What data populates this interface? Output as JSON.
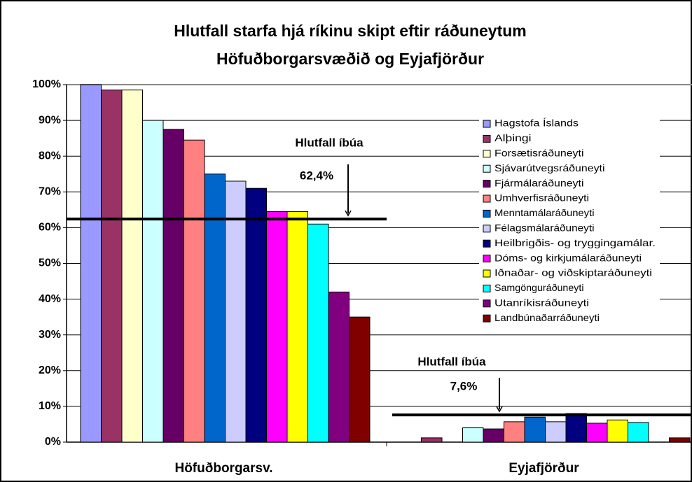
{
  "chart_data": {
    "type": "bar",
    "title": [
      "Hlutfall starfa hjá ríkinu skipt eftir ráðuneytum",
      "Höfuðborgarsvæðið og Eyjafjörður"
    ],
    "categories": [
      "Höfuðborgarsv.",
      "Eyjafjörður"
    ],
    "series": [
      {
        "name": "Hagstofa Íslands",
        "color": "#9999ff",
        "values": [
          100,
          0
        ]
      },
      {
        "name": "Alþingi",
        "color": "#993366",
        "values": [
          98.5,
          1.2
        ]
      },
      {
        "name": "Forsætisráðuneyti",
        "color": "#ffffcc",
        "values": [
          98.5,
          0
        ]
      },
      {
        "name": "Sjávarútvegsráðuneyti",
        "color": "#ccffff",
        "values": [
          90,
          4
        ]
      },
      {
        "name": "Fjármálaráðuneyti",
        "color": "#660066",
        "values": [
          87.5,
          3.7
        ]
      },
      {
        "name": "Umhverfisráðuneyti",
        "color": "#ff8080",
        "values": [
          84.5,
          5.7
        ]
      },
      {
        "name": "Menntamálaráðuneyti",
        "color": "#0066cc",
        "values": [
          75,
          7
        ]
      },
      {
        "name": "Félagsmálaráðuneyti",
        "color": "#ccccff",
        "values": [
          73,
          5.7
        ]
      },
      {
        "name": "Heilbrigðis- og tryggingamálar.",
        "color": "#000080",
        "values": [
          71,
          8
        ]
      },
      {
        "name": "Dóms- og kirkjumálaráðuneyti",
        "color": "#ff00ff",
        "values": [
          64.5,
          5.3
        ]
      },
      {
        "name": "Iðnaðar- og viðskiptaráðuneyti",
        "color": "#ffff00",
        "values": [
          64.5,
          6.2
        ]
      },
      {
        "name": "Samgönguráðuneyti",
        "color": "#00ffff",
        "values": [
          61,
          5.5
        ]
      },
      {
        "name": "Utanríkisráðuneyti",
        "color": "#800080",
        "values": [
          42,
          0
        ]
      },
      {
        "name": "Landbúnaðarráðuneyti",
        "color": "#800000",
        "values": [
          35,
          1.2
        ]
      }
    ],
    "annotations": [
      {
        "text": "Hlutfall íbúa",
        "value": 62.4,
        "label": "62,4%"
      },
      {
        "text": "Hlutfall íbúa",
        "value": 7.6,
        "label": "7,6%"
      }
    ],
    "ylim": [
      0,
      100
    ],
    "yticks": [
      {
        "value": 0,
        "label": "0%"
      },
      {
        "value": 10,
        "label": "10%"
      },
      {
        "value": 20,
        "label": "20%"
      },
      {
        "value": 30,
        "label": "30%"
      },
      {
        "value": 40,
        "label": "40%"
      },
      {
        "value": 50,
        "label": "50%"
      },
      {
        "value": 60,
        "label": "60%"
      },
      {
        "value": 70,
        "label": "70%"
      },
      {
        "value": 80,
        "label": "80%"
      },
      {
        "value": 90,
        "label": "90%"
      },
      {
        "value": 100,
        "label": "100%"
      }
    ],
    "grid": true,
    "legend": "right"
  }
}
